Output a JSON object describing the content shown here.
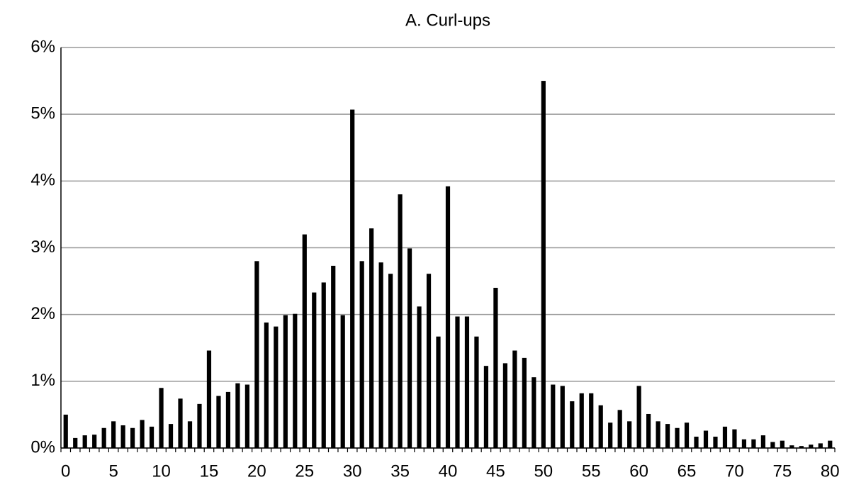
{
  "chart_data": {
    "type": "bar",
    "title": "A. Curl-ups",
    "categories": [
      "0",
      null,
      null,
      null,
      null,
      "5",
      null,
      null,
      null,
      null,
      "10",
      null,
      null,
      null,
      null,
      "15",
      null,
      null,
      null,
      null,
      "20",
      null,
      null,
      null,
      null,
      "25",
      null,
      null,
      null,
      null,
      "30",
      null,
      null,
      null,
      null,
      "35",
      null,
      null,
      null,
      null,
      "40",
      null,
      null,
      null,
      null,
      "45",
      null,
      null,
      null,
      null,
      "50",
      null,
      null,
      null,
      null,
      "55",
      null,
      null,
      null,
      null,
      "60",
      null,
      null,
      null,
      null,
      "65",
      null,
      null,
      null,
      null,
      "70",
      null,
      null,
      null,
      null,
      "75",
      null,
      null,
      null,
      null,
      "80"
    ],
    "values": [
      0.5,
      0.15,
      0.19,
      0.2,
      0.3,
      0.4,
      0.34,
      0.3,
      0.42,
      0.32,
      0.9,
      0.36,
      0.74,
      0.4,
      0.66,
      1.46,
      0.78,
      0.84,
      0.97,
      0.95,
      2.8,
      1.88,
      1.82,
      1.99,
      2.01,
      3.2,
      2.33,
      2.48,
      2.73,
      1.99,
      5.07,
      2.8,
      3.29,
      2.78,
      2.61,
      3.8,
      2.99,
      2.12,
      2.61,
      1.67,
      3.92,
      1.97,
      1.97,
      1.67,
      1.23,
      2.4,
      1.27,
      1.46,
      1.35,
      1.06,
      5.5,
      0.95,
      0.93,
      0.7,
      0.82,
      0.82,
      0.64,
      0.38,
      0.57,
      0.4,
      0.93,
      0.51,
      0.4,
      0.36,
      0.3,
      0.38,
      0.17,
      0.26,
      0.17,
      0.32,
      0.28,
      0.13,
      0.13,
      0.19,
      0.09,
      0.11,
      0.04,
      0.03,
      0.05,
      0.07,
      0.11
    ],
    "color": "#000000",
    "ylim": [
      0,
      6
    ],
    "yticks": [
      {
        "value": 0,
        "label": "0%"
      },
      {
        "value": 1,
        "label": "1%"
      },
      {
        "value": 2,
        "label": "2%"
      },
      {
        "value": 3,
        "label": "3%"
      },
      {
        "value": 4,
        "label": "4%"
      },
      {
        "value": 5,
        "label": "5%"
      },
      {
        "value": 6,
        "label": "6%"
      }
    ],
    "grid": true
  }
}
